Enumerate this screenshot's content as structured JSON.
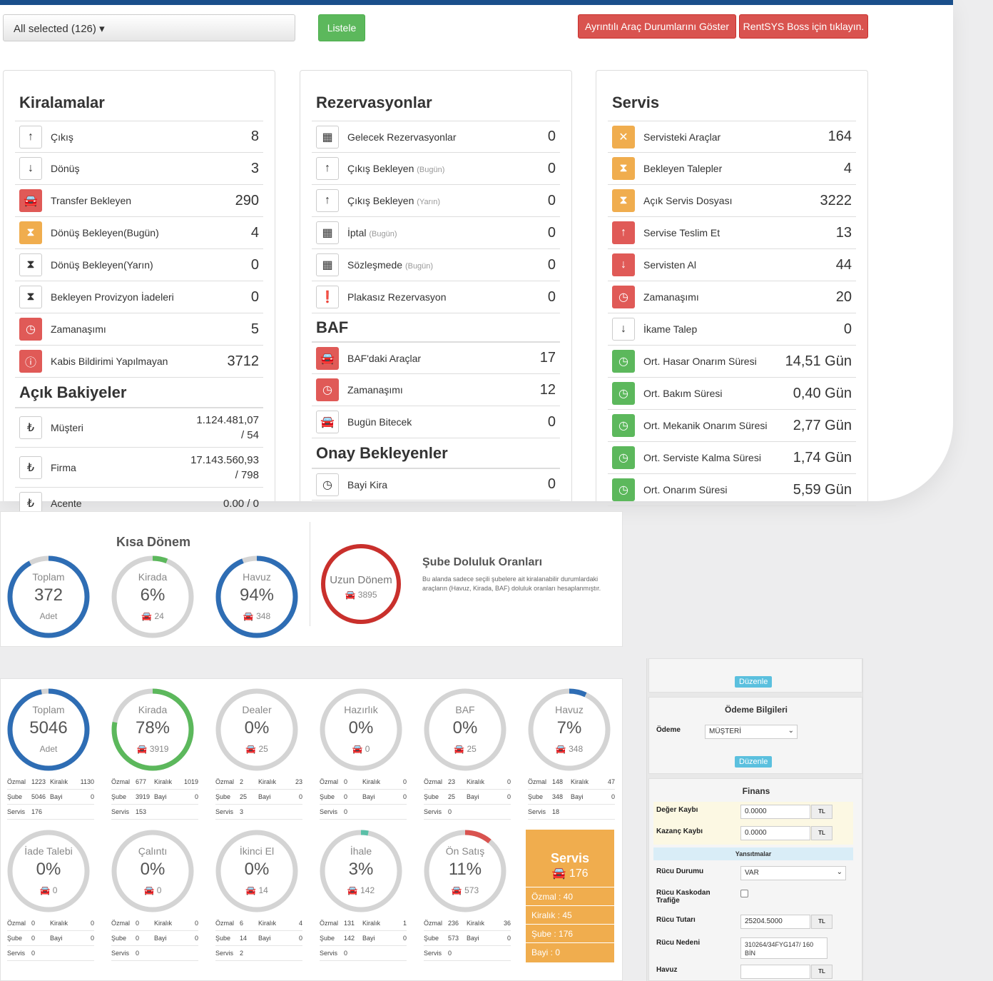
{
  "filter": {
    "selected": "All selected (126)"
  },
  "buttons": {
    "list": "Listele",
    "details": "Ayrıntılı Araç Durumlarını Göster",
    "boss": "RentSYS Boss için tıklayın."
  },
  "kiralamalar": {
    "title": "Kiralamalar",
    "rows": [
      {
        "label": "Çıkış",
        "value": "8"
      },
      {
        "label": "Dönüş",
        "value": "3"
      },
      {
        "label": "Transfer Bekleyen",
        "value": "290"
      },
      {
        "label": "Dönüş Bekleyen(Bugün)",
        "value": "4"
      },
      {
        "label": "Dönüş Bekleyen(Yarın)",
        "value": "0"
      },
      {
        "label": "Bekleyen Provizyon İadeleri",
        "value": "0"
      },
      {
        "label": "Zamanaşımı",
        "value": "5"
      },
      {
        "label": "Kabis Bildirimi Yapılmayan",
        "value": "3712"
      }
    ]
  },
  "bakiyeler": {
    "title": "Açık Bakiyeler",
    "rows": [
      {
        "label": "Müşteri",
        "value": "1.124.481,07",
        "count": "/ 54"
      },
      {
        "label": "Firma",
        "value": "17.143.560,93",
        "count": "/ 798"
      },
      {
        "label": "Acente",
        "value": "0.00 / 0"
      }
    ]
  },
  "rezervasyonlar": {
    "title": "Rezervasyonlar",
    "rows": [
      {
        "label": "Gelecek Rezervasyonlar",
        "note": "",
        "value": "0"
      },
      {
        "label": "Çıkış Bekleyen",
        "note": "(Bugün)",
        "value": "0"
      },
      {
        "label": "Çıkış Bekleyen",
        "note": "(Yarın)",
        "value": "0"
      },
      {
        "label": "İptal",
        "note": "(Bugün)",
        "value": "0"
      },
      {
        "label": "Sözleşmede",
        "note": "(Bugün)",
        "value": "0"
      },
      {
        "label": "Plakasız Rezervasyon",
        "note": "",
        "value": "0"
      }
    ]
  },
  "baf": {
    "title": "BAF",
    "rows": [
      {
        "label": "BAF'daki Araçlar",
        "value": "17"
      },
      {
        "label": "Zamanaşımı",
        "value": "12"
      },
      {
        "label": "Bugün Bitecek",
        "value": "0"
      }
    ]
  },
  "onay": {
    "title": "Onay Bekleyenler",
    "rows": [
      {
        "label": "Bayi Kira",
        "value": "0"
      }
    ]
  },
  "servis": {
    "title": "Servis",
    "rows": [
      {
        "label": "Servisteki Araçlar",
        "value": "164"
      },
      {
        "label": "Bekleyen Talepler",
        "value": "4"
      },
      {
        "label": "Açık Servis Dosyası",
        "value": "3222"
      },
      {
        "label": "Servise Teslim Et",
        "value": "13"
      },
      {
        "label": "Servisten Al",
        "value": "44"
      },
      {
        "label": "Zamanaşımı",
        "value": "20"
      },
      {
        "label": "İkame Talep",
        "value": "0"
      },
      {
        "label": "Ort. Hasar Onarım Süresi",
        "value": "14,51 Gün"
      },
      {
        "label": "Ort. Bakım Süresi",
        "value": "0,40 Gün"
      },
      {
        "label": "Ort. Mekanik Onarım Süresi",
        "value": "2,77 Gün"
      },
      {
        "label": "Ort. Serviste Kalma Süresi",
        "value": "1,74 Gün"
      },
      {
        "label": "Ort. Onarım Süresi",
        "value": "5,59 Gün"
      }
    ]
  },
  "kisa": {
    "title": "Kısa Dönem",
    "gauges": [
      {
        "t": "Toplam",
        "n": "372",
        "s": "Adet",
        "frac": 0.92,
        "color": "#2e6db4"
      },
      {
        "t": "Kirada",
        "n": "6%",
        "s": "24",
        "frac": 0.06,
        "color": "#5cb85c"
      },
      {
        "t": "Havuz",
        "n": "94%",
        "s": "348",
        "frac": 0.94,
        "color": "#2e6db4"
      }
    ]
  },
  "uzun": {
    "t": "Uzun Dönem",
    "s": "3895",
    "color": "#c9302c"
  },
  "sube": {
    "title": "Şube Doluluk Oranları",
    "desc": "Bu alanda sadece seçili şubelere ait kiralanabilir durumlardaki araçların (Havuz, Kirada, BAF) doluluk oranları hesaplanmıştır."
  },
  "fleet": [
    {
      "t": "Toplam",
      "n": "5046",
      "s": "Adet",
      "frac": 0.97,
      "color": "#2e6db4",
      "o": "1223",
      "k": "1130",
      "sb": "5046",
      "b": "0",
      "sv": "176"
    },
    {
      "t": "Kirada",
      "n": "78%",
      "s": "3919",
      "frac": 0.78,
      "color": "#5cb85c",
      "o": "677",
      "k": "1019",
      "sb": "3919",
      "b": "0",
      "sv": "153"
    },
    {
      "t": "Dealer",
      "n": "0%",
      "s": "25",
      "frac": 0,
      "color": "#2e6db4",
      "o": "2",
      "k": "23",
      "sb": "25",
      "b": "0",
      "sv": "3"
    },
    {
      "t": "Hazırlık",
      "n": "0%",
      "s": "0",
      "frac": 0,
      "color": "#2e6db4",
      "o": "0",
      "k": "0",
      "sb": "0",
      "b": "0",
      "sv": "0"
    },
    {
      "t": "BAF",
      "n": "0%",
      "s": "25",
      "frac": 0,
      "color": "#2e6db4",
      "o": "23",
      "k": "0",
      "sb": "25",
      "b": "0",
      "sv": "0"
    },
    {
      "t": "Havuz",
      "n": "7%",
      "s": "348",
      "frac": 0.07,
      "color": "#2e6db4",
      "o": "148",
      "k": "47",
      "sb": "348",
      "b": "0",
      "sv": "18"
    },
    {
      "t": "İade Talebi",
      "n": "0%",
      "s": "0",
      "frac": 0,
      "color": "#2e6db4",
      "o": "0",
      "k": "0",
      "sb": "0",
      "b": "0",
      "sv": "0"
    },
    {
      "t": "Çalıntı",
      "n": "0%",
      "s": "0",
      "frac": 0,
      "color": "#2e6db4",
      "o": "0",
      "k": "0",
      "sb": "0",
      "b": "0",
      "sv": "0"
    },
    {
      "t": "İkinci El",
      "n": "0%",
      "s": "14",
      "frac": 0,
      "color": "#2e6db4",
      "o": "6",
      "k": "4",
      "sb": "14",
      "b": "0",
      "sv": "2"
    },
    {
      "t": "İhale",
      "n": "3%",
      "s": "142",
      "frac": 0.03,
      "color": "#5bc0a8",
      "o": "131",
      "k": "1",
      "sb": "142",
      "b": "0",
      "sv": "0"
    },
    {
      "t": "Ön Satış",
      "n": "11%",
      "s": "573",
      "frac": 0.11,
      "color": "#d9534f",
      "o": "236",
      "k": "36",
      "sb": "573",
      "b": "0",
      "sv": "0"
    }
  ],
  "statlabels": {
    "o": "Özmal",
    "k": "Kiralık",
    "sb": "Şube",
    "b": "Bayi",
    "sv": "Servis"
  },
  "servbox": {
    "title": "Servis",
    "count": "176",
    "items": [
      "Özmal : 40",
      "Kiralık : 45",
      "Şube : 176",
      "Bayi : 0"
    ]
  },
  "form": {
    "edit": "Düzenle",
    "odeme_title": "Ödeme Bilgileri",
    "odeme_label": "Ödeme",
    "odeme_value": "MÜŞTERİ",
    "finans_title": "Finans",
    "deger": "Değer Kaybı",
    "deger_v": "0.0000",
    "kazanc": "Kazanç Kaybı",
    "kazanc_v": "0.0000",
    "tl": "TL",
    "yans": "Yansıtmalar",
    "rucu_durum": "Rücu Durumu",
    "rucu_durum_v": "VAR",
    "rucu_kasko": "Rücu Kaskodan Trafiğe",
    "rucu_tutar": "Rücu Tutarı",
    "rucu_tutar_v": "25204.5000",
    "rucu_neden": "Rücu Nedeni",
    "rucu_neden_v": "310264/34FYG147/ 160 BİN",
    "havuz": "Havuz"
  }
}
